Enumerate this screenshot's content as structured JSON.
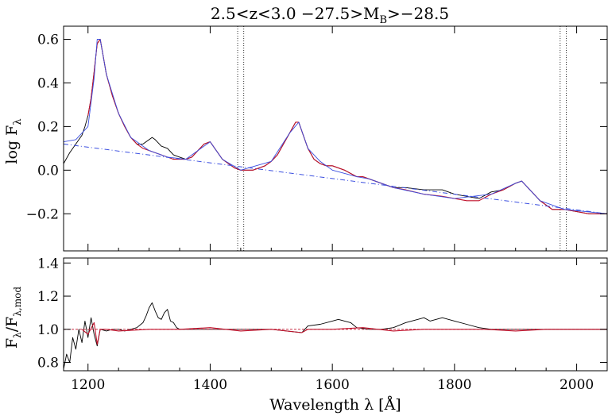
{
  "chart_data": {
    "type": "line",
    "title": "2.5<z<3.0 −27.5>M",
    "title_sub": "B",
    "title_end": ">−28.5",
    "xlabel": "Wavelength λ [Å]",
    "xlim": [
      1160,
      2050
    ],
    "x_ticks": [
      "1200",
      "1400",
      "1600",
      "1800",
      "2000"
    ],
    "x_tick_values": [
      1200,
      1400,
      1600,
      1800,
      2000
    ],
    "vertical_lines": [
      1445,
      1455,
      1973,
      1983
    ],
    "colors": {
      "observed": "#000000",
      "model": "#c0102a",
      "continuum": "#3b4fe0"
    },
    "top_panel": {
      "ylabel": "log F",
      "ylabel_sub": "λ",
      "ylim": [
        -0.37,
        0.66
      ],
      "y_ticks": [
        "−0.2",
        "0.0",
        "0.2",
        "0.4",
        "0.6"
      ],
      "y_tick_values": [
        -0.2,
        0.0,
        0.2,
        0.4,
        0.6
      ],
      "series": [
        {
          "type": "line",
          "x": [
            1160,
            1170,
            1180,
            1190,
            1195,
            1200,
            1205,
            1210,
            1215,
            1220,
            1225,
            1230,
            1240,
            1250,
            1260,
            1270,
            1280,
            1290,
            1300,
            1305,
            1310,
            1320,
            1330,
            1340,
            1350,
            1360,
            1370,
            1380,
            1390,
            1400,
            1410,
            1420,
            1430,
            1440,
            1450,
            1460,
            1470,
            1480,
            1490,
            1500,
            1510,
            1520,
            1530,
            1540,
            1545,
            1550,
            1560,
            1570,
            1580,
            1590,
            1600,
            1620,
            1640,
            1650,
            1660,
            1680,
            1700,
            1720,
            1750,
            1780,
            1800,
            1820,
            1840,
            1860,
            1880,
            1900,
            1910,
            1920,
            1940,
            1960,
            1980,
            2000,
            2020,
            2050
          ],
          "y": [
            0.03,
            0.08,
            0.12,
            0.16,
            0.2,
            0.25,
            0.33,
            0.45,
            0.58,
            0.6,
            0.52,
            0.44,
            0.34,
            0.26,
            0.2,
            0.15,
            0.12,
            0.12,
            0.14,
            0.15,
            0.14,
            0.11,
            0.1,
            0.07,
            0.06,
            0.05,
            0.06,
            0.09,
            0.12,
            0.13,
            0.09,
            0.05,
            0.03,
            0.01,
            0.0,
            0.0,
            0.0,
            0.01,
            0.02,
            0.04,
            0.07,
            0.12,
            0.17,
            0.22,
            0.22,
            0.18,
            0.1,
            0.05,
            0.03,
            0.02,
            0.02,
            0.0,
            -0.03,
            -0.03,
            -0.04,
            -0.06,
            -0.08,
            -0.08,
            -0.09,
            -0.09,
            -0.11,
            -0.12,
            -0.13,
            -0.1,
            -0.09,
            -0.06,
            -0.05,
            -0.08,
            -0.14,
            -0.18,
            -0.18,
            -0.19,
            -0.2,
            -0.2
          ]
        },
        {
          "type": "line",
          "x": [
            1200,
            1205,
            1210,
            1215,
            1220,
            1225,
            1230,
            1240,
            1250,
            1260,
            1270,
            1280,
            1290,
            1300,
            1310,
            1320,
            1330,
            1340,
            1350,
            1360,
            1370,
            1380,
            1390,
            1400,
            1410,
            1420,
            1430,
            1440,
            1450,
            1460,
            1470,
            1480,
            1490,
            1500,
            1510,
            1520,
            1530,
            1540,
            1545,
            1550,
            1560,
            1570,
            1580,
            1590,
            1600,
            1620,
            1640,
            1650,
            1660,
            1680,
            1700,
            1720,
            1750,
            1780,
            1800,
            1820,
            1840,
            1860,
            1880,
            1900,
            1910,
            1920,
            1940,
            1960,
            1980,
            2000,
            2020,
            2050
          ],
          "y": [
            0.25,
            0.33,
            0.45,
            0.58,
            0.6,
            0.52,
            0.44,
            0.34,
            0.26,
            0.2,
            0.15,
            0.12,
            0.1,
            0.09,
            0.08,
            0.07,
            0.06,
            0.05,
            0.05,
            0.05,
            0.06,
            0.09,
            0.12,
            0.13,
            0.09,
            0.05,
            0.03,
            0.01,
            0.0,
            0.0,
            0.0,
            0.01,
            0.02,
            0.04,
            0.07,
            0.12,
            0.17,
            0.22,
            0.22,
            0.18,
            0.1,
            0.05,
            0.03,
            0.02,
            0.02,
            0.0,
            -0.03,
            -0.03,
            -0.04,
            -0.06,
            -0.08,
            -0.09,
            -0.11,
            -0.12,
            -0.13,
            -0.14,
            -0.14,
            -0.11,
            -0.09,
            -0.06,
            -0.05,
            -0.08,
            -0.14,
            -0.18,
            -0.18,
            -0.19,
            -0.2,
            -0.2
          ]
        },
        {
          "type": "line",
          "x": [
            1160,
            1180,
            1200,
            1210,
            1215,
            1220,
            1230,
            1250,
            1270,
            1300,
            1330,
            1360,
            1380,
            1400,
            1420,
            1450,
            1500,
            1530,
            1545,
            1560,
            1580,
            1600,
            1640,
            1660,
            1700,
            1750,
            1800,
            1860,
            1900,
            1910,
            1940,
            1980,
            2050
          ],
          "y": [
            0.13,
            0.14,
            0.2,
            0.42,
            0.6,
            0.6,
            0.44,
            0.26,
            0.15,
            0.09,
            0.06,
            0.05,
            0.09,
            0.13,
            0.05,
            0.0,
            0.04,
            0.17,
            0.22,
            0.1,
            0.04,
            0.0,
            -0.03,
            -0.04,
            -0.08,
            -0.11,
            -0.13,
            -0.11,
            -0.06,
            -0.05,
            -0.14,
            -0.18,
            -0.2
          ]
        },
        {
          "type": "line",
          "x": [
            1160,
            2050
          ],
          "y": [
            0.12,
            -0.2
          ]
        }
      ]
    },
    "bottom_panel": {
      "ylabel": "F",
      "ylabel_sub1": "λ",
      "ylabel_mid": "/F",
      "ylabel_sub2": "λ,mod",
      "ylim": [
        0.75,
        1.43
      ],
      "y_ticks": [
        "0.8",
        "1.0",
        "1.2",
        "1.4"
      ],
      "y_tick_values": [
        0.8,
        1.0,
        1.2,
        1.4
      ],
      "series": [
        {
          "type": "line",
          "x": [
            1160,
            1165,
            1170,
            1175,
            1180,
            1185,
            1190,
            1195,
            1200,
            1205,
            1210,
            1215,
            1220,
            1230,
            1240,
            1250,
            1260,
            1270,
            1280,
            1290,
            1295,
            1300,
            1305,
            1310,
            1315,
            1320,
            1325,
            1330,
            1335,
            1340,
            1345,
            1350,
            1360,
            1380,
            1400,
            1450,
            1500,
            1550,
            1560,
            1580,
            1600,
            1610,
            1620,
            1630,
            1640,
            1660,
            1680,
            1700,
            1720,
            1740,
            1750,
            1760,
            1780,
            1800,
            1820,
            1840,
            1860,
            1880,
            1900,
            1920,
            1940,
            1960,
            2000,
            2050
          ],
          "y": [
            0.76,
            0.85,
            0.8,
            0.95,
            0.88,
            1.0,
            0.92,
            1.05,
            0.95,
            1.07,
            0.97,
            0.9,
            1.0,
            0.99,
            1.0,
            1.0,
            0.99,
            1.0,
            1.01,
            1.04,
            1.08,
            1.13,
            1.16,
            1.11,
            1.07,
            1.06,
            1.1,
            1.12,
            1.05,
            1.04,
            1.01,
            1.0,
            1.0,
            1.0,
            1.0,
            1.0,
            1.0,
            0.98,
            1.02,
            1.03,
            1.05,
            1.06,
            1.05,
            1.04,
            1.01,
            1.0,
            1.0,
            1.01,
            1.04,
            1.06,
            1.07,
            1.05,
            1.07,
            1.05,
            1.03,
            1.01,
            1.0,
            1.0,
            1.0,
            1.0,
            1.0,
            1.0,
            1.0,
            1.0
          ]
        },
        {
          "type": "line",
          "x": [
            1190,
            1200,
            1210,
            1215,
            1220,
            1230,
            1250,
            1300,
            1350,
            1400,
            1450,
            1500,
            1550,
            1560,
            1600,
            1650,
            1700,
            1750,
            1800,
            1850,
            1900,
            1950,
            2000,
            2050
          ],
          "y": [
            1.0,
            0.97,
            1.04,
            0.91,
            1.0,
            1.0,
            0.99,
            1.0,
            1.0,
            1.01,
            0.99,
            1.0,
            0.98,
            1.0,
            1.0,
            1.01,
            0.99,
            1.0,
            1.0,
            1.0,
            0.99,
            1.0,
            1.0,
            1.0
          ]
        },
        {
          "type": "line",
          "x": [
            1160,
            2050
          ],
          "y": [
            1.0,
            1.0
          ]
        }
      ]
    }
  }
}
